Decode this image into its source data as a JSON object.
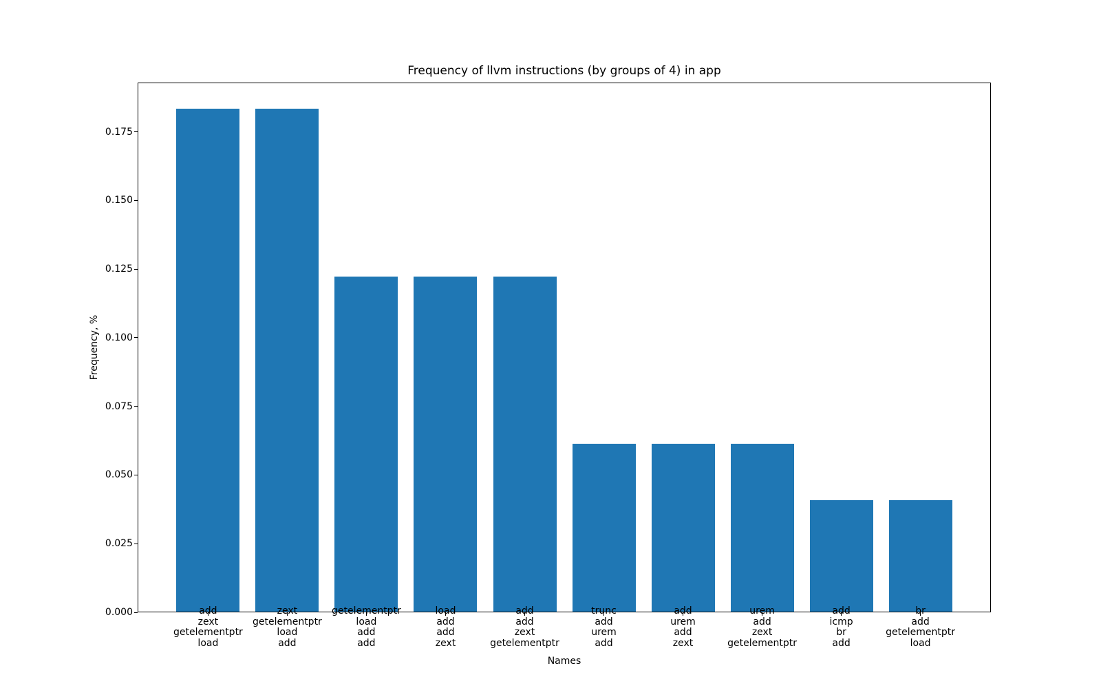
{
  "chart_data": {
    "type": "bar",
    "title": "Frequency of llvm instructions (by groups of 4) in app",
    "xlabel": "Names",
    "ylabel": "Frequency, %",
    "bar_color": "#1f77b4",
    "background_color": "#ffffff",
    "axis_color": "#000000",
    "grid": false,
    "legend": false,
    "ylim": [
      0,
      0.1929
    ],
    "xlim": [
      -0.89,
      9.89
    ],
    "bar_width": 0.8,
    "yticks": {
      "values": [
        0,
        0.025,
        0.05,
        0.075,
        0.1,
        0.125,
        0.15,
        0.175
      ],
      "labels": [
        "0.000",
        "0.025",
        "0.050",
        "0.075",
        "0.100",
        "0.125",
        "0.150",
        "0.175"
      ]
    },
    "categories": [
      [
        "add",
        "zext",
        "getelementptr",
        "load"
      ],
      [
        "zext",
        "getelementptr",
        "load",
        "add"
      ],
      [
        "getelementptr",
        "load",
        "add",
        "add"
      ],
      [
        "load",
        "add",
        "add",
        "zext"
      ],
      [
        "add",
        "add",
        "zext",
        "getelementptr"
      ],
      [
        "trunc",
        "add",
        "urem",
        "add"
      ],
      [
        "add",
        "urem",
        "add",
        "zext"
      ],
      [
        "urem",
        "add",
        "zext",
        "getelementptr"
      ],
      [
        "add",
        "icmp",
        "br",
        "add"
      ],
      [
        "br",
        "add",
        "getelementptr",
        "load"
      ]
    ],
    "values": [
      0.1837,
      0.1837,
      0.1224,
      0.1224,
      0.1224,
      0.0612,
      0.0612,
      0.0612,
      0.0408,
      0.0408
    ]
  }
}
